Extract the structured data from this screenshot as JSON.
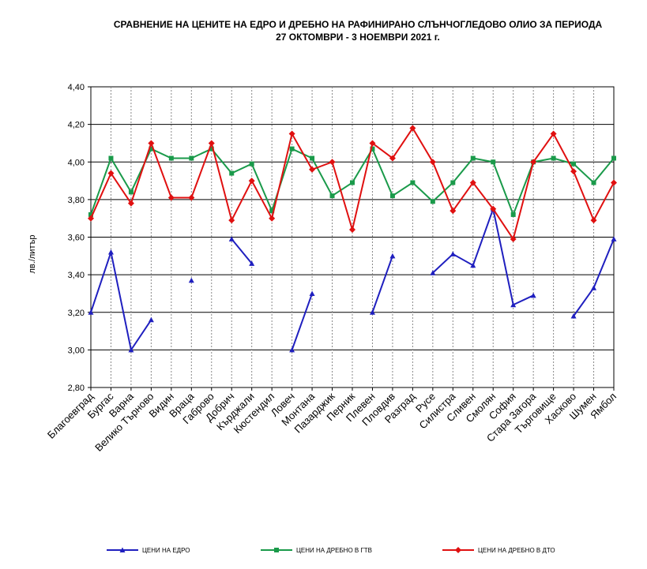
{
  "chart_data": {
    "type": "line",
    "title": "СРАВНЕНИЕ НА ЦЕНИТЕ НА ЕДРО И ДРЕБНО НА РАФИНИРАНО СЛЪНЧОГЛЕДОВО ОЛИО ЗА ПЕРИОДА",
    "subtitle": "27 ОКТОМВРИ - 3 НОЕМВРИ 2021 г.",
    "y_label": "лв./литър",
    "categories": [
      "Благоевград",
      "Бургас",
      "Варна",
      "Велико Търново",
      "Видин",
      "Враца",
      "Габрово",
      "Добрич",
      "Кърджали",
      "Кюстендил",
      "Ловеч",
      "Монтана",
      "Пазарджик",
      "Перник",
      "Плевен",
      "Пловдив",
      "Разград",
      "Русе",
      "Силистра",
      "Сливен",
      "Смолян",
      "София",
      "Стара Загора",
      "Търговище",
      "Хасково",
      "Шумен",
      "Ямбол"
    ],
    "series": [
      {
        "name": "ЦЕНИ НА ЕДРО",
        "color": "#1f1fbf",
        "marker": "triangle",
        "values": [
          3.2,
          3.52,
          3.0,
          3.16,
          null,
          3.37,
          null,
          3.59,
          3.46,
          null,
          3.0,
          3.3,
          null,
          null,
          3.2,
          3.5,
          null,
          3.41,
          3.51,
          3.45,
          3.75,
          3.24,
          3.29,
          null,
          3.18,
          3.33,
          3.59
        ]
      },
      {
        "name": "ЦЕНИ НА ДРЕБНО В ГТВ",
        "color": "#1a9a4a",
        "marker": "square",
        "values": [
          3.72,
          4.02,
          3.84,
          4.07,
          4.02,
          4.02,
          4.07,
          3.94,
          3.99,
          3.74,
          4.07,
          4.02,
          3.82,
          3.89,
          4.07,
          3.82,
          3.89,
          3.79,
          3.89,
          4.02,
          4.0,
          3.72,
          4.0,
          4.02,
          3.99,
          3.89,
          4.02
        ]
      },
      {
        "name": "ЦЕНИ НА ДРЕБНО В ДТО",
        "color": "#e01010",
        "marker": "diamond",
        "values": [
          3.7,
          3.94,
          3.78,
          4.1,
          3.81,
          3.81,
          4.1,
          3.69,
          3.9,
          3.7,
          4.15,
          3.96,
          4.0,
          3.64,
          4.1,
          4.02,
          4.18,
          4.0,
          3.74,
          3.89,
          3.75,
          3.59,
          4.0,
          4.15,
          3.95,
          3.69,
          3.89
        ]
      }
    ],
    "ylim": [
      2.8,
      4.4
    ],
    "yticks": [
      {
        "value": 2.8,
        "label": "2,80"
      },
      {
        "value": 3.0,
        "label": "3,00"
      },
      {
        "value": 3.2,
        "label": "3,20"
      },
      {
        "value": 3.4,
        "label": "3,40"
      },
      {
        "value": 3.6,
        "label": "3,60"
      },
      {
        "value": 3.8,
        "label": "3,80"
      },
      {
        "value": 4.0,
        "label": "4,00"
      },
      {
        "value": 4.2,
        "label": "4,20"
      },
      {
        "value": 4.4,
        "label": "4,40"
      }
    ],
    "grid": true
  }
}
